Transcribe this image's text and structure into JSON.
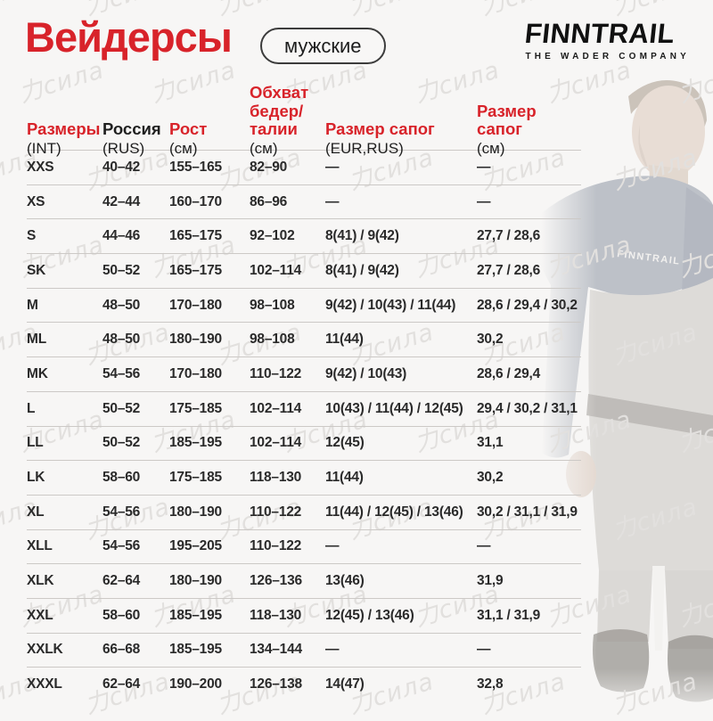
{
  "page": {
    "title": "Вейдерсы",
    "badge": "мужские"
  },
  "brand": {
    "name": "FINNTRAIL",
    "tagline": "THE WADER COMPANY"
  },
  "watermark": {
    "text": "力сила"
  },
  "photo": {
    "jacket_text": "FINNTRAIL"
  },
  "colors": {
    "accent_red": "#d8232a",
    "text_black": "#1f1f1f",
    "separator_gray": "#ccc9c6",
    "background": "#f7f6f5"
  },
  "table": {
    "columns": [
      {
        "label": "Размеры",
        "sub": "(INT)"
      },
      {
        "label": "Россия",
        "sub": "(RUS)"
      },
      {
        "label": "Рост",
        "sub": "(см)"
      },
      {
        "label": "Обхват\nбедер/\nталии",
        "sub": "(см)"
      },
      {
        "label": "Размер сапог",
        "sub": "(EUR,RUS)"
      },
      {
        "label": "Размер сапог",
        "sub": "(см)"
      }
    ],
    "rows": [
      [
        "XXS",
        "40–42",
        "155–165",
        "82–90",
        "—",
        "—"
      ],
      [
        "XS",
        "42–44",
        "160–170",
        "86–96",
        "—",
        "—"
      ],
      [
        "S",
        "44–46",
        "165–175",
        "92–102",
        "8(41) / 9(42)",
        "27,7 / 28,6"
      ],
      [
        "SK",
        "50–52",
        "165–175",
        "102–114",
        "8(41) / 9(42)",
        "27,7 / 28,6"
      ],
      [
        "M",
        "48–50",
        "170–180",
        "98–108",
        "9(42) / 10(43) / 11(44)",
        "28,6 / 29,4 / 30,2"
      ],
      [
        "ML",
        "48–50",
        "180–190",
        "98–108",
        "11(44)",
        "30,2"
      ],
      [
        "MK",
        "54–56",
        "170–180",
        "110–122",
        "9(42) / 10(43)",
        "28,6 / 29,4"
      ],
      [
        "L",
        "50–52",
        "175–185",
        "102–114",
        "10(43) / 11(44) / 12(45)",
        "29,4 / 30,2 / 31,1"
      ],
      [
        "LL",
        "50–52",
        "185–195",
        "102–114",
        "12(45)",
        "31,1"
      ],
      [
        "LK",
        "58–60",
        "175–185",
        "118–130",
        "11(44)",
        "30,2"
      ],
      [
        "XL",
        "54–56",
        "180–190",
        "110–122",
        "11(44) / 12(45) / 13(46)",
        "30,2 / 31,1 / 31,9"
      ],
      [
        "XLL",
        "54–56",
        "195–205",
        "110–122",
        "—",
        "—"
      ],
      [
        "XLK",
        "62–64",
        "180–190",
        "126–136",
        "13(46)",
        "31,9"
      ],
      [
        "XXL",
        "58–60",
        "185–195",
        "118–130",
        "12(45) / 13(46)",
        "31,1 / 31,9"
      ],
      [
        "XXLK",
        "66–68",
        "185–195",
        "134–144",
        "—",
        "—"
      ],
      [
        "XXXL",
        "62–64",
        "190–200",
        "126–138",
        "14(47)",
        "32,8"
      ]
    ]
  }
}
